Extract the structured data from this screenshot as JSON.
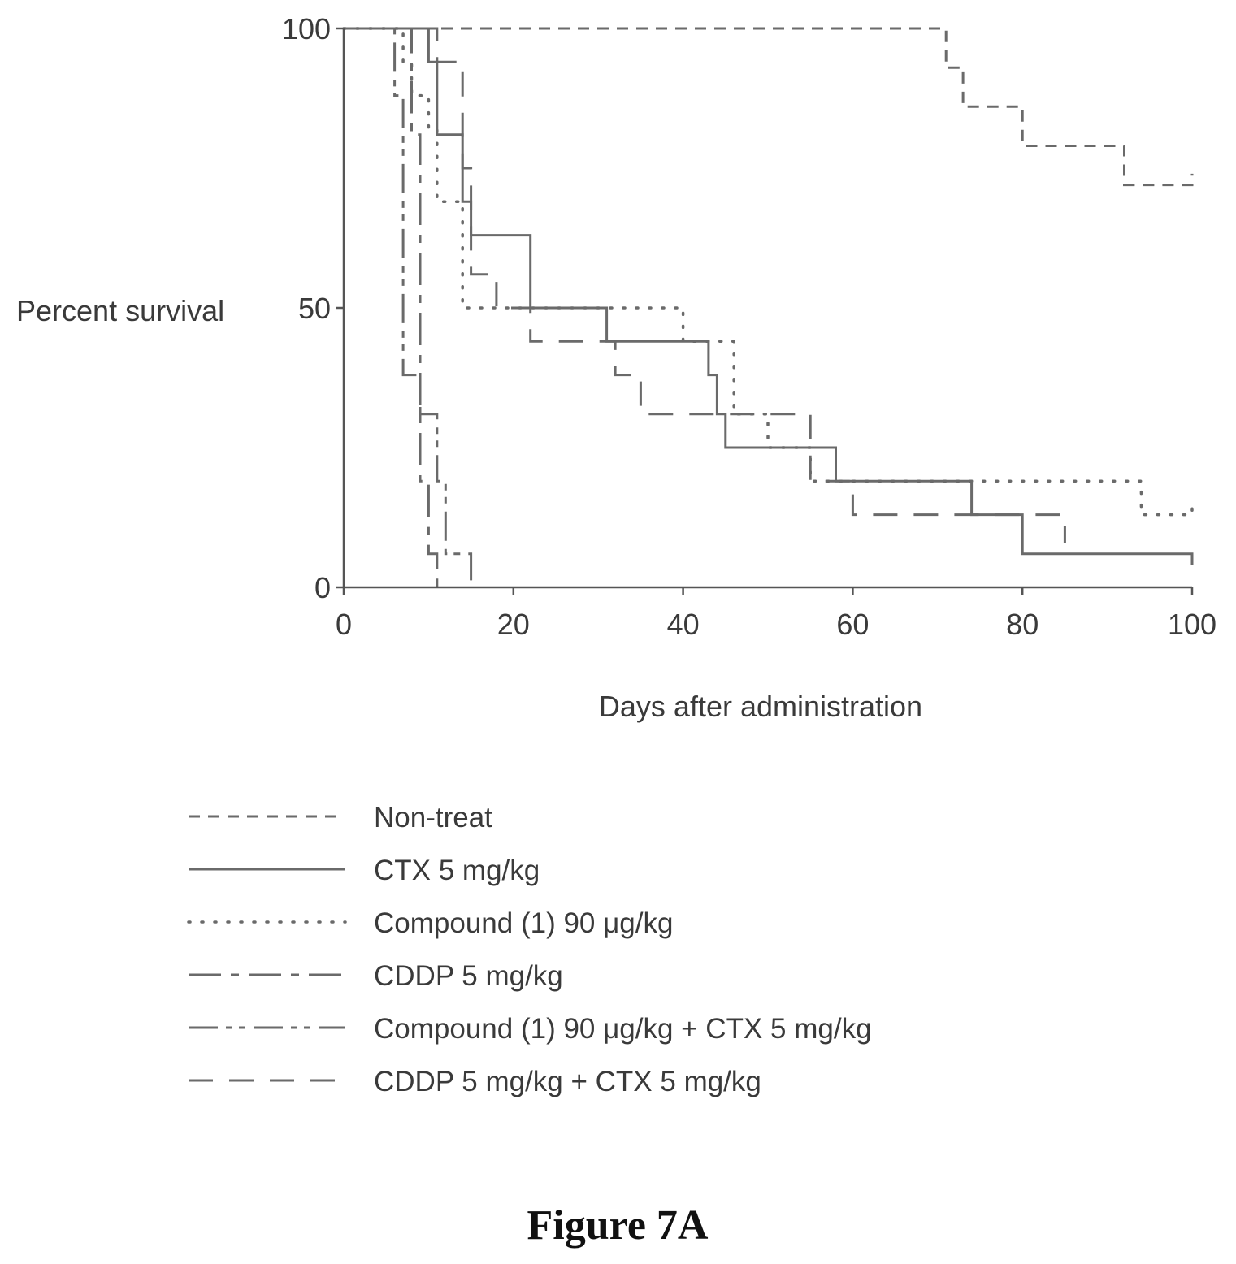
{
  "chart_data": {
    "type": "line",
    "xlabel": "Days after administration",
    "ylabel": "Percent survival",
    "xlim": [
      0,
      100
    ],
    "ylim": [
      0,
      100
    ],
    "x_ticks": [
      "0",
      "20",
      "40",
      "60",
      "80",
      "100"
    ],
    "y_ticks": [
      "0",
      "50",
      "100"
    ],
    "series": [
      {
        "name": "Non-treat",
        "style": "short-dash",
        "points": [
          [
            0,
            100
          ],
          [
            71,
            100
          ],
          [
            71,
            93
          ],
          [
            73,
            93
          ],
          [
            73,
            86
          ],
          [
            80,
            86
          ],
          [
            80,
            79
          ],
          [
            92,
            79
          ],
          [
            92,
            72
          ],
          [
            100,
            72
          ],
          [
            100,
            74
          ]
        ]
      },
      {
        "name": "CTX 5 mg/kg",
        "style": "solid",
        "points": [
          [
            0,
            100
          ],
          [
            10,
            100
          ],
          [
            10,
            94
          ],
          [
            11,
            94
          ],
          [
            11,
            81
          ],
          [
            14,
            81
          ],
          [
            14,
            69
          ],
          [
            15,
            69
          ],
          [
            15,
            63
          ],
          [
            22,
            63
          ],
          [
            22,
            50
          ],
          [
            31,
            50
          ],
          [
            31,
            44
          ],
          [
            43,
            44
          ],
          [
            43,
            38
          ],
          [
            44,
            38
          ],
          [
            44,
            31
          ],
          [
            45,
            31
          ],
          [
            45,
            25
          ],
          [
            58,
            25
          ],
          [
            58,
            19
          ],
          [
            74,
            19
          ],
          [
            74,
            13
          ],
          [
            80,
            13
          ],
          [
            80,
            6
          ],
          [
            100,
            6
          ],
          [
            100,
            4
          ]
        ]
      },
      {
        "name": "Compound (1) 90 μg/kg",
        "style": "dotted",
        "points": [
          [
            0,
            100
          ],
          [
            7,
            100
          ],
          [
            7,
            94
          ],
          [
            8,
            94
          ],
          [
            8,
            88
          ],
          [
            10,
            88
          ],
          [
            10,
            82
          ],
          [
            11,
            82
          ],
          [
            11,
            69
          ],
          [
            14,
            69
          ],
          [
            14,
            50
          ],
          [
            40,
            50
          ],
          [
            40,
            44
          ],
          [
            46,
            44
          ],
          [
            46,
            31
          ],
          [
            50,
            31
          ],
          [
            50,
            25
          ],
          [
            55,
            25
          ],
          [
            55,
            19
          ],
          [
            94,
            19
          ],
          [
            94,
            13
          ],
          [
            100,
            13
          ],
          [
            100,
            15
          ]
        ]
      },
      {
        "name": "CDDP 5 mg/kg",
        "style": "long-dash-short-dash",
        "points": [
          [
            0,
            100
          ],
          [
            8,
            100
          ],
          [
            8,
            81
          ],
          [
            9,
            81
          ],
          [
            9,
            19
          ],
          [
            10,
            19
          ],
          [
            10,
            6
          ],
          [
            11,
            6
          ],
          [
            11,
            0
          ]
        ]
      },
      {
        "name": "Compound (1) 90 μg/kg + CTX 5 mg/kg",
        "style": "long-short-short",
        "points": [
          [
            0,
            100
          ],
          [
            6,
            100
          ],
          [
            6,
            88
          ],
          [
            7,
            88
          ],
          [
            7,
            38
          ],
          [
            9,
            38
          ],
          [
            9,
            31
          ],
          [
            11,
            31
          ],
          [
            11,
            19
          ],
          [
            12,
            19
          ],
          [
            12,
            6
          ],
          [
            15,
            6
          ],
          [
            15,
            0
          ]
        ]
      },
      {
        "name": "CDDP 5 mg/kg + CTX 5 mg/kg",
        "style": "long-dash",
        "points": [
          [
            0,
            100
          ],
          [
            11,
            100
          ],
          [
            11,
            94
          ],
          [
            14,
            94
          ],
          [
            14,
            75
          ],
          [
            15,
            75
          ],
          [
            15,
            56
          ],
          [
            18,
            56
          ],
          [
            18,
            50
          ],
          [
            22,
            50
          ],
          [
            22,
            44
          ],
          [
            32,
            44
          ],
          [
            32,
            38
          ],
          [
            35,
            38
          ],
          [
            35,
            31
          ],
          [
            55,
            31
          ],
          [
            55,
            19
          ],
          [
            60,
            19
          ],
          [
            60,
            13
          ],
          [
            85,
            13
          ],
          [
            85,
            8
          ]
        ]
      }
    ],
    "grid": false,
    "legend_position": "bottom"
  },
  "caption": "Figure 7A"
}
